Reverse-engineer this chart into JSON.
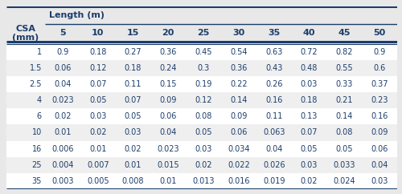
{
  "col_header_top": "Length (m)",
  "col_lengths": [
    "5",
    "10",
    "15",
    "20",
    "25",
    "30",
    "35",
    "40",
    "45",
    "50"
  ],
  "csa_values": [
    "1",
    "1.5",
    "2.5",
    "4",
    "6",
    "10",
    "16",
    "25",
    "35"
  ],
  "table_data": [
    [
      "0.9",
      "0.18",
      "0.27",
      "0.36",
      "0.45",
      "0.54",
      "0.63",
      "0.72",
      "0.82",
      "0.9"
    ],
    [
      "0.06",
      "0.12",
      "0.18",
      "0.24",
      "0.3",
      "0.36",
      "0.43",
      "0.48",
      "0.55",
      "0.6"
    ],
    [
      "0.04",
      "0.07",
      "0.11",
      "0.15",
      "0.19",
      "0.22",
      "0.26",
      "0.03",
      "0.33",
      "0.37"
    ],
    [
      "0.023",
      "0.05",
      "0.07",
      "0.09",
      "0.12",
      "0.14",
      "0.16",
      "0.18",
      "0.21",
      "0.23"
    ],
    [
      "0.02",
      "0.03",
      "0.05",
      "0.06",
      "0.08",
      "0.09",
      "0.11",
      "0.13",
      "0.14",
      "0.16"
    ],
    [
      "0.01",
      "0.02",
      "0.03",
      "0.04",
      "0.05",
      "0.06",
      "0.063",
      "0.07",
      "0.08",
      "0.09"
    ],
    [
      "0.006",
      "0.01",
      "0.02",
      "0.023",
      "0.03",
      "0.034",
      "0.04",
      "0.05",
      "0.05",
      "0.06"
    ],
    [
      "0.004",
      "0.007",
      "0.01",
      "0.015",
      "0.02",
      "0.022",
      "0.026",
      "0.03",
      "0.033",
      "0.04"
    ],
    [
      "0.003",
      "0.005",
      "0.008",
      "0.01",
      "0.013",
      "0.016",
      "0.019",
      "0.02",
      "0.024",
      "0.03"
    ]
  ],
  "bg_color": "#e8e8e8",
  "white": "#ffffff",
  "light_gray": "#efefef",
  "navy": "#1c3d6b",
  "text_navy": "#1c3d6b",
  "border_thick": 2.2,
  "border_thin": 1.0,
  "font_header": 8.0,
  "font_data": 7.0
}
